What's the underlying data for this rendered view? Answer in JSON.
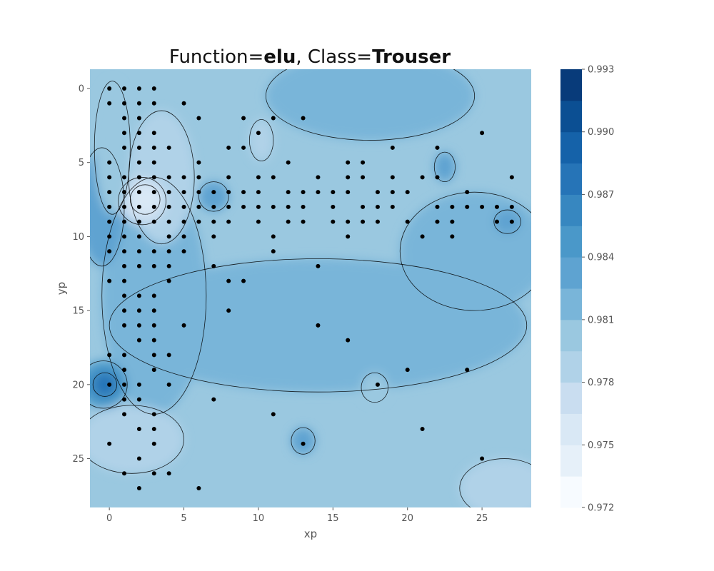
{
  "chart_data": {
    "type": "contour",
    "title": {
      "prefix": "Function=",
      "function": "elu",
      "separator": ", Class=",
      "class": "Trouser"
    },
    "xlabel": "xp",
    "ylabel": "yp",
    "xlim": [
      -1.3,
      28.3
    ],
    "ylim": [
      28.3,
      -1.3
    ],
    "xticks": [
      0,
      5,
      10,
      15,
      20,
      25
    ],
    "yticks": [
      0,
      5,
      10,
      15,
      20,
      25
    ],
    "colorbar": {
      "range": [
        0.972,
        0.993
      ],
      "levels": 14,
      "tick_values": [
        0.972,
        0.975,
        0.978,
        0.981,
        0.984,
        0.987,
        0.99,
        0.993
      ],
      "tick_labels": [
        "0.972",
        "0.975",
        "0.978",
        "0.981",
        "0.984",
        "0.987",
        "0.990",
        "0.993"
      ]
    },
    "background_value": 0.9803,
    "regions": [
      {
        "value": 0.9815,
        "x": 17.5,
        "y": 0.5,
        "rx": 7,
        "ry": 3
      },
      {
        "value": 0.9818,
        "x": 14,
        "y": 16,
        "rx": 14,
        "ry": 4.5
      },
      {
        "value": 0.9818,
        "x": 3,
        "y": 14,
        "rx": 3.5,
        "ry": 8
      },
      {
        "value": 0.9812,
        "x": 24.5,
        "y": 11,
        "rx": 5,
        "ry": 4
      },
      {
        "value": 0.9825,
        "x": -0.5,
        "y": 8,
        "rx": 1.5,
        "ry": 4
      },
      {
        "value": 0.983,
        "x": 7,
        "y": 7.3,
        "rx": 1.0,
        "ry": 1.0
      },
      {
        "value": 0.983,
        "x": 26.7,
        "y": 9,
        "rx": 0.9,
        "ry": 0.8
      },
      {
        "value": 0.979,
        "x": 3.5,
        "y": 6,
        "rx": 2.2,
        "ry": 4.5
      },
      {
        "value": 0.9775,
        "x": 2.2,
        "y": 7.6,
        "rx": 1.6,
        "ry": 1.6
      },
      {
        "value": 0.976,
        "x": 2.4,
        "y": 7.5,
        "rx": 1.0,
        "ry": 1.0
      },
      {
        "value": 0.979,
        "x": 10.2,
        "y": 3.5,
        "rx": 0.8,
        "ry": 1.4
      },
      {
        "value": 0.979,
        "x": 1.5,
        "y": 23.7,
        "rx": 3.5,
        "ry": 2.3
      },
      {
        "value": 0.9785,
        "x": 26.5,
        "y": 27,
        "rx": 3,
        "ry": 2
      },
      {
        "value": 0.9845,
        "x": -0.4,
        "y": 20,
        "rx": 1.6,
        "ry": 1.6
      },
      {
        "value": 0.987,
        "x": -0.3,
        "y": 20,
        "rx": 0.8,
        "ry": 0.8
      },
      {
        "value": 0.9825,
        "x": 13,
        "y": 23.8,
        "rx": 0.8,
        "ry": 0.9
      },
      {
        "value": 0.9795,
        "x": 17.8,
        "y": 20.2,
        "rx": 0.9,
        "ry": 1.0
      },
      {
        "value": 0.9795,
        "x": 0.2,
        "y": 4,
        "rx": 1.2,
        "ry": 4.5
      },
      {
        "value": 0.9825,
        "x": 22.5,
        "y": 5.3,
        "rx": 0.7,
        "ry": 1.0
      }
    ],
    "points": [
      [
        0,
        0
      ],
      [
        1,
        0
      ],
      [
        2,
        0
      ],
      [
        3,
        0
      ],
      [
        0,
        1
      ],
      [
        1,
        1
      ],
      [
        2,
        1
      ],
      [
        3,
        1
      ],
      [
        5,
        1
      ],
      [
        1,
        2
      ],
      [
        2,
        2
      ],
      [
        6,
        2
      ],
      [
        9,
        2
      ],
      [
        11,
        2
      ],
      [
        13,
        2
      ],
      [
        1,
        3
      ],
      [
        2,
        3
      ],
      [
        3,
        3
      ],
      [
        10,
        3
      ],
      [
        25,
        3
      ],
      [
        1,
        4
      ],
      [
        2,
        4
      ],
      [
        3,
        4
      ],
      [
        4,
        4
      ],
      [
        8,
        4
      ],
      [
        9,
        4
      ],
      [
        19,
        4
      ],
      [
        22,
        4
      ],
      [
        0,
        5
      ],
      [
        2,
        5
      ],
      [
        3,
        5
      ],
      [
        6,
        5
      ],
      [
        12,
        5
      ],
      [
        16,
        5
      ],
      [
        17,
        5
      ],
      [
        0,
        6
      ],
      [
        1,
        6
      ],
      [
        2,
        6
      ],
      [
        3,
        6
      ],
      [
        4,
        6
      ],
      [
        5,
        6
      ],
      [
        6,
        6
      ],
      [
        8,
        6
      ],
      [
        10,
        6
      ],
      [
        11,
        6
      ],
      [
        14,
        6
      ],
      [
        16,
        6
      ],
      [
        17,
        6
      ],
      [
        19,
        6
      ],
      [
        21,
        6
      ],
      [
        22,
        6
      ],
      [
        27,
        6
      ],
      [
        0,
        7
      ],
      [
        1,
        7
      ],
      [
        2,
        7
      ],
      [
        3,
        7
      ],
      [
        4,
        7
      ],
      [
        5,
        7
      ],
      [
        6,
        7
      ],
      [
        7,
        7
      ],
      [
        8,
        7
      ],
      [
        9,
        7
      ],
      [
        10,
        7
      ],
      [
        12,
        7
      ],
      [
        13,
        7
      ],
      [
        14,
        7
      ],
      [
        15,
        7
      ],
      [
        16,
        7
      ],
      [
        18,
        7
      ],
      [
        19,
        7
      ],
      [
        20,
        7
      ],
      [
        24,
        7
      ],
      [
        0,
        8
      ],
      [
        1,
        8
      ],
      [
        2,
        8
      ],
      [
        3,
        8
      ],
      [
        4,
        8
      ],
      [
        5,
        8
      ],
      [
        6,
        8
      ],
      [
        7,
        8
      ],
      [
        8,
        8
      ],
      [
        9,
        8
      ],
      [
        10,
        8
      ],
      [
        11,
        8
      ],
      [
        12,
        8
      ],
      [
        13,
        8
      ],
      [
        15,
        8
      ],
      [
        17,
        8
      ],
      [
        18,
        8
      ],
      [
        19,
        8
      ],
      [
        22,
        8
      ],
      [
        23,
        8
      ],
      [
        24,
        8
      ],
      [
        25,
        8
      ],
      [
        26,
        8
      ],
      [
        27,
        8
      ],
      [
        0,
        9
      ],
      [
        1,
        9
      ],
      [
        2,
        9
      ],
      [
        3,
        9
      ],
      [
        4,
        9
      ],
      [
        5,
        9
      ],
      [
        6,
        9
      ],
      [
        7,
        9
      ],
      [
        8,
        9
      ],
      [
        10,
        9
      ],
      [
        12,
        9
      ],
      [
        13,
        9
      ],
      [
        15,
        9
      ],
      [
        16,
        9
      ],
      [
        17,
        9
      ],
      [
        18,
        9
      ],
      [
        20,
        9
      ],
      [
        22,
        9
      ],
      [
        23,
        9
      ],
      [
        26,
        9
      ],
      [
        27,
        9
      ],
      [
        0,
        10
      ],
      [
        1,
        10
      ],
      [
        2,
        10
      ],
      [
        4,
        10
      ],
      [
        5,
        10
      ],
      [
        7,
        10
      ],
      [
        11,
        10
      ],
      [
        16,
        10
      ],
      [
        21,
        10
      ],
      [
        23,
        10
      ],
      [
        0,
        11
      ],
      [
        1,
        11
      ],
      [
        2,
        11
      ],
      [
        3,
        11
      ],
      [
        4,
        11
      ],
      [
        5,
        11
      ],
      [
        11,
        11
      ],
      [
        1,
        12
      ],
      [
        2,
        12
      ],
      [
        3,
        12
      ],
      [
        4,
        12
      ],
      [
        7,
        12
      ],
      [
        14,
        12
      ],
      [
        0,
        13
      ],
      [
        1,
        13
      ],
      [
        4,
        13
      ],
      [
        8,
        13
      ],
      [
        9,
        13
      ],
      [
        1,
        14
      ],
      [
        2,
        14
      ],
      [
        3,
        14
      ],
      [
        1,
        15
      ],
      [
        2,
        15
      ],
      [
        3,
        15
      ],
      [
        8,
        15
      ],
      [
        1,
        16
      ],
      [
        2,
        16
      ],
      [
        3,
        16
      ],
      [
        5,
        16
      ],
      [
        14,
        16
      ],
      [
        2,
        17
      ],
      [
        3,
        17
      ],
      [
        16,
        17
      ],
      [
        0,
        18
      ],
      [
        1,
        18
      ],
      [
        3,
        18
      ],
      [
        4,
        18
      ],
      [
        1,
        19
      ],
      [
        3,
        19
      ],
      [
        20,
        19
      ],
      [
        24,
        19
      ],
      [
        0,
        20
      ],
      [
        1,
        20
      ],
      [
        2,
        20
      ],
      [
        4,
        20
      ],
      [
        18,
        20
      ],
      [
        1,
        21
      ],
      [
        2,
        21
      ],
      [
        7,
        21
      ],
      [
        1,
        22
      ],
      [
        3,
        22
      ],
      [
        11,
        22
      ],
      [
        2,
        23
      ],
      [
        3,
        23
      ],
      [
        21,
        23
      ],
      [
        0,
        24
      ],
      [
        3,
        24
      ],
      [
        13,
        24
      ],
      [
        2,
        25
      ],
      [
        25,
        25
      ],
      [
        1,
        26
      ],
      [
        3,
        26
      ],
      [
        4,
        26
      ],
      [
        2,
        27
      ],
      [
        6,
        27
      ]
    ]
  }
}
